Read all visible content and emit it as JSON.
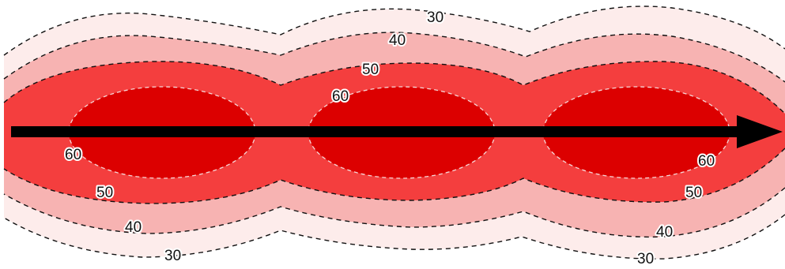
{
  "contours": [
    {
      "value": "30",
      "fill": "#fdeceb"
    },
    {
      "value": "40",
      "fill": "#f7b3b2"
    },
    {
      "value": "50",
      "fill": "#f43e3e"
    },
    {
      "value": "60",
      "fill": "#dc0000"
    }
  ],
  "labels": {
    "top_30": "30",
    "top_40": "40",
    "top_50": "50",
    "top_60": "60",
    "left_60": "60",
    "left_50": "50",
    "left_40": "40",
    "left_30": "30",
    "right_60": "60",
    "right_50": "50",
    "right_40": "40",
    "right_30": "30"
  },
  "arrow": {
    "color": "#000000",
    "direction": "right"
  }
}
